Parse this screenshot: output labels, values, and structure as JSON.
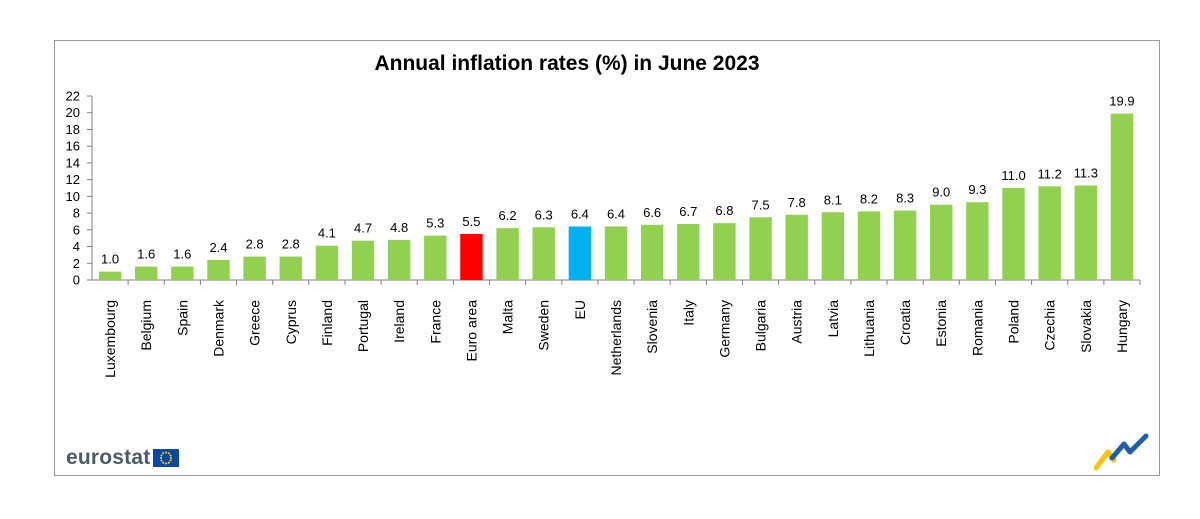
{
  "chart_data": {
    "type": "bar",
    "title": "Annual inflation rates (%) in June 2023",
    "xlabel": "",
    "ylabel": "",
    "ylim": [
      0,
      22
    ],
    "yticks": [
      0,
      2,
      4,
      6,
      8,
      10,
      12,
      14,
      16,
      18,
      20,
      22
    ],
    "categories": [
      "Luxembourg",
      "Belgium",
      "Spain",
      "Denmark",
      "Greece",
      "Cyprus",
      "Finland",
      "Portugal",
      "Ireland",
      "France",
      "Euro area",
      "Malta",
      "Sweden",
      "EU",
      "Netherlands",
      "Slovenia",
      "Italy",
      "Germany",
      "Bulgaria",
      "Austria",
      "Latvia",
      "Lithuania",
      "Croatia",
      "Estonia",
      "Romania",
      "Poland",
      "Czechia",
      "Slovakia",
      "Hungary"
    ],
    "values": [
      1.0,
      1.6,
      1.6,
      2.4,
      2.8,
      2.8,
      4.1,
      4.7,
      4.8,
      5.3,
      5.5,
      6.2,
      6.3,
      6.4,
      6.4,
      6.6,
      6.7,
      6.8,
      7.5,
      7.8,
      8.1,
      8.2,
      8.3,
      9.0,
      9.3,
      11.0,
      11.2,
      11.3,
      19.9
    ],
    "value_labels": [
      "1.0",
      "1.6",
      "1.6",
      "2.4",
      "2.8",
      "2.8",
      "4.1",
      "4.7",
      "4.8",
      "5.3",
      "5.5",
      "6.2",
      "6.3",
      "6.4",
      "6.4",
      "6.6",
      "6.7",
      "6.8",
      "7.5",
      "7.8",
      "8.1",
      "8.2",
      "8.3",
      "9.0",
      "9.3",
      "11.0",
      "11.2",
      "11.3",
      "19.9"
    ],
    "colors": {
      "default": "#92d050",
      "highlight": {
        "Euro area": "#ff0000",
        "EU": "#00b0f0"
      }
    },
    "grid": false,
    "legend": "none"
  },
  "branding": {
    "logo_text": "eurostat",
    "logo_icon": "eu-flag-icon",
    "corner_icon": "eurostat-corner-mark-icon"
  }
}
